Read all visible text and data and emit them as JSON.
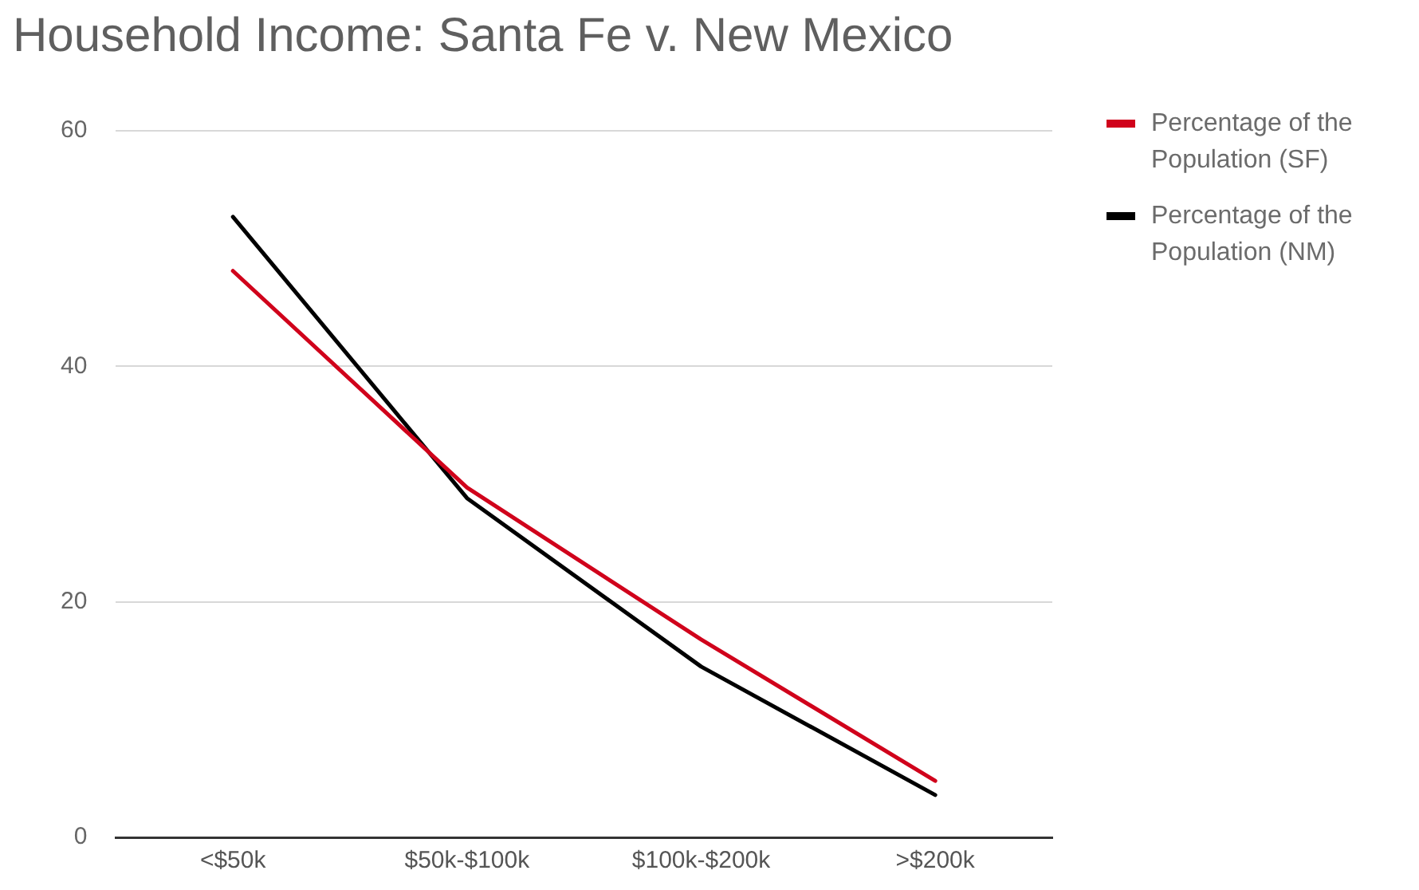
{
  "chart_data": {
    "type": "line",
    "title": "Household Income: Santa Fe v. New Mexico",
    "categories": [
      "<$50k",
      "$50k-$100k",
      "$100k-$200k",
      ">$200k"
    ],
    "series": [
      {
        "name": "Percentage of the Population (SF)",
        "color": "#d0021b",
        "values": [
          48.1,
          29.7,
          16.8,
          4.8
        ]
      },
      {
        "name": "Percentage of the Population (NM)",
        "color": "#000000",
        "values": [
          52.7,
          28.8,
          14.5,
          3.6
        ]
      }
    ],
    "ylim": [
      0,
      60
    ],
    "yticks": [
      0,
      20,
      40,
      60
    ],
    "grid": "y",
    "legend": "right",
    "marker": "none",
    "line_style": "solid"
  }
}
